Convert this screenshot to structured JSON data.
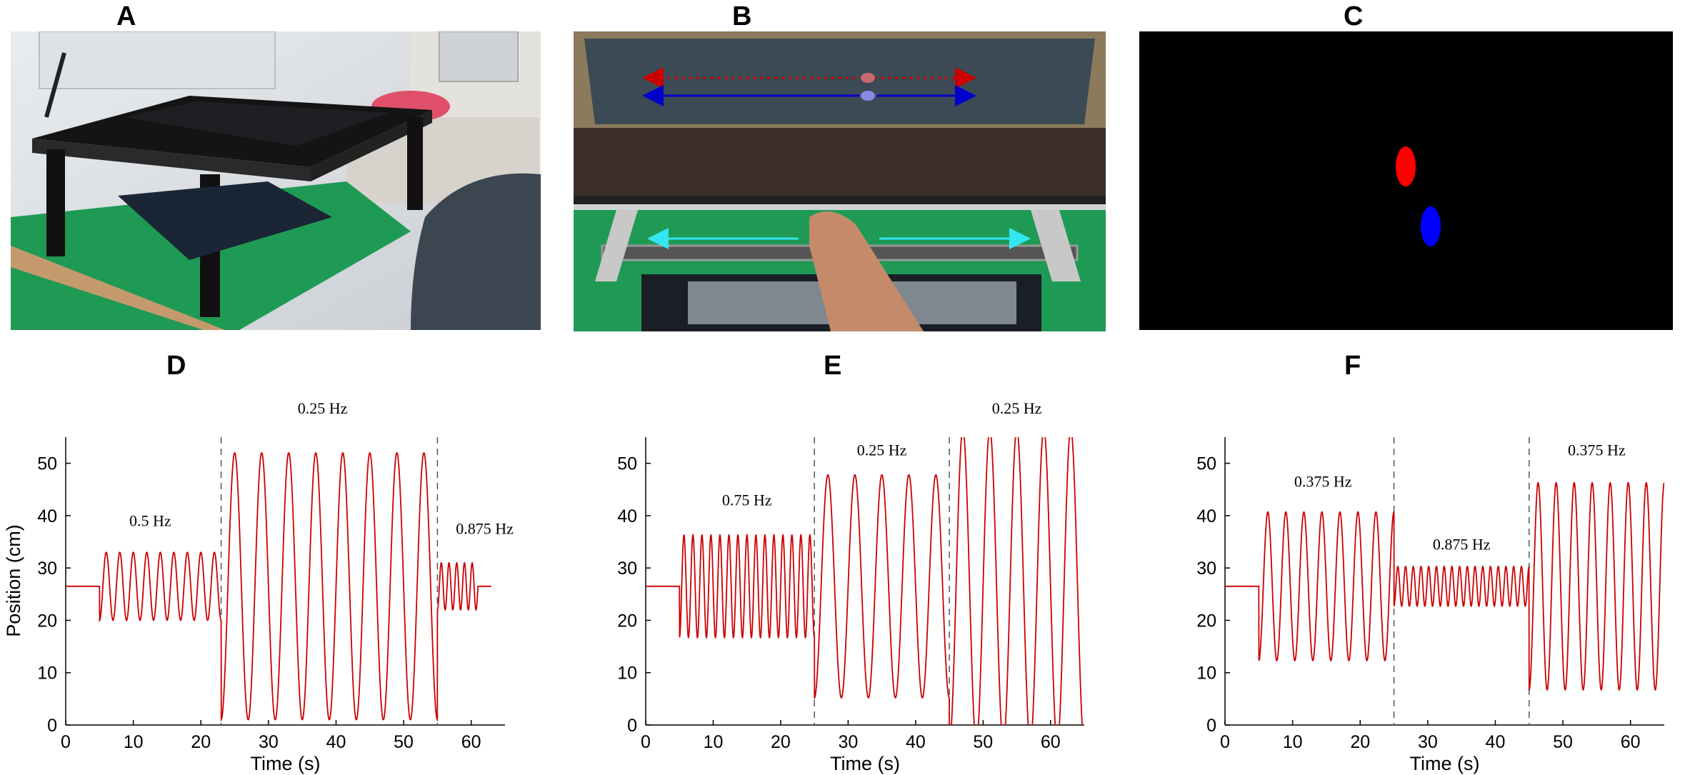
{
  "panels": {
    "a": "A",
    "b": "B",
    "c": "C",
    "d": "D",
    "e": "E",
    "f": "F"
  },
  "colors": {
    "trace": "#cc0000",
    "target_red": "#ff0000",
    "target_blue": "#0000ff",
    "arrow_cyan": "#33e6f0",
    "arrow_blue": "#0000cc",
    "arrow_red": "#cc0000",
    "screen_black": "#000000",
    "table_green": "#1f9a55",
    "dashed_line": "#555555"
  },
  "chart_data": [
    {
      "type": "line",
      "panel": "D",
      "xlabel": "Time (s)",
      "ylabel": "Position (cm)",
      "xlim": [
        0,
        65
      ],
      "ylim": [
        0,
        55
      ],
      "xticks": [
        0,
        10,
        20,
        30,
        40,
        50,
        60
      ],
      "yticks": [
        0,
        10,
        20,
        30,
        40,
        50
      ],
      "t_end": 63,
      "boundaries": [
        23,
        55
      ],
      "segments": [
        {
          "start": 0,
          "end": 5,
          "kind": "flat",
          "value": 26.5
        },
        {
          "start": 5,
          "end": 23,
          "kind": "sine",
          "freq": 0.5,
          "center": 26.5,
          "amp": 6.5
        },
        {
          "start": 23,
          "end": 55,
          "kind": "sine",
          "freq": 0.25,
          "center": 26.5,
          "amp": 25.5
        },
        {
          "start": 55,
          "end": 61,
          "kind": "sine",
          "freq": 0.875,
          "center": 26.5,
          "amp": 4.5
        },
        {
          "start": 61,
          "end": 63,
          "kind": "flat",
          "value": 26.5
        }
      ],
      "annotations": [
        {
          "text": "0.5 Hz",
          "x": 12.5,
          "y": 38
        },
        {
          "text": "0.25 Hz",
          "x": 38,
          "y": 59.5
        },
        {
          "text": "0.875 Hz",
          "x": 62,
          "y": 36.5
        }
      ]
    },
    {
      "type": "line",
      "panel": "E",
      "xlabel": "Time (s)",
      "ylabel": "",
      "xlim": [
        0,
        65
      ],
      "ylim": [
        0,
        55
      ],
      "xticks": [
        0,
        10,
        20,
        30,
        40,
        50,
        60
      ],
      "yticks": [
        0,
        10,
        20,
        30,
        40,
        50
      ],
      "t_end": 65,
      "boundaries": [
        25,
        45
      ],
      "segments": [
        {
          "start": 0,
          "end": 5,
          "kind": "flat",
          "value": 26.5
        },
        {
          "start": 5,
          "end": 25,
          "kind": "sine",
          "freq": 0.75,
          "center": 26.5,
          "amp": 9.8
        },
        {
          "start": 25,
          "end": 45,
          "kind": "sine",
          "freq": 0.25,
          "center": 26.5,
          "amp": 21.3
        },
        {
          "start": 45,
          "end": 65,
          "kind": "sine",
          "freq": 0.25,
          "center": 26.5,
          "amp": 30.0
        }
      ],
      "annotations": [
        {
          "text": "0.75 Hz",
          "x": 15,
          "y": 42
        },
        {
          "text": "0.25 Hz",
          "x": 35,
          "y": 51.5
        },
        {
          "text": "0.25 Hz",
          "x": 55,
          "y": 59.5
        }
      ]
    },
    {
      "type": "line",
      "panel": "F",
      "xlabel": "Time (s)",
      "ylabel": "",
      "xlim": [
        0,
        65
      ],
      "ylim": [
        0,
        55
      ],
      "xticks": [
        0,
        10,
        20,
        30,
        40,
        50,
        60
      ],
      "yticks": [
        0,
        10,
        20,
        30,
        40,
        50
      ],
      "t_end": 65,
      "boundaries": [
        25,
        45
      ],
      "segments": [
        {
          "start": 0,
          "end": 5,
          "kind": "flat",
          "value": 26.5
        },
        {
          "start": 5,
          "end": 25,
          "kind": "sine",
          "freq": 0.375,
          "center": 26.5,
          "amp": 14.2
        },
        {
          "start": 25,
          "end": 45,
          "kind": "sine",
          "freq": 0.875,
          "center": 26.5,
          "amp": 3.8
        },
        {
          "start": 45,
          "end": 65,
          "kind": "sine",
          "freq": 0.375,
          "center": 26.5,
          "amp": 19.8
        }
      ],
      "annotations": [
        {
          "text": "0.375 Hz",
          "x": 14.5,
          "y": 45.5
        },
        {
          "text": "0.875 Hz",
          "x": 35,
          "y": 33.5
        },
        {
          "text": "0.375 Hz",
          "x": 55,
          "y": 51.5
        }
      ]
    }
  ]
}
